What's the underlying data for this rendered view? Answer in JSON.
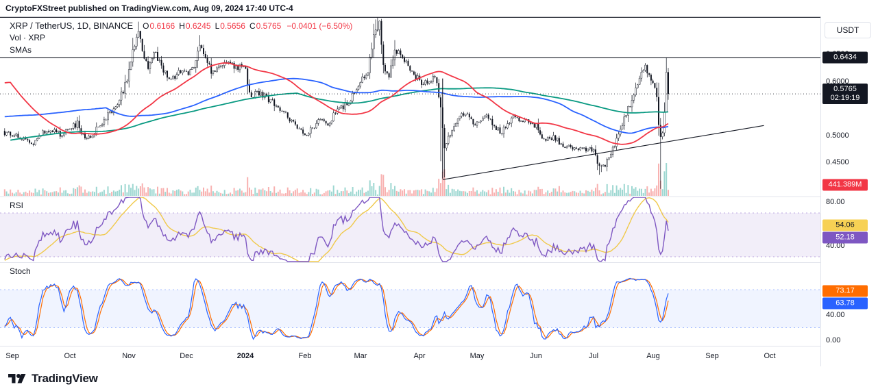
{
  "attribution": "CryptoFXStreet published on TradingView.com, Aug 09, 2024 17:40 UTC-4",
  "header": {
    "symbol_full": "XRP / TetherUS, 1D, BINANCE",
    "ohlc_items": [
      {
        "k": "O",
        "v": "0.6166"
      },
      {
        "k": "H",
        "v": "0.6245"
      },
      {
        "k": "L",
        "v": "0.5656"
      },
      {
        "k": "C",
        "v": "0.5765"
      }
    ],
    "change": "−0.0401 (−6.50%)",
    "vol_label": "Vol · XRP",
    "smas_label": "SMAs"
  },
  "panes": {
    "rsi_label": "RSI",
    "stoch_label": "Stoch"
  },
  "right_axis": {
    "currency_button": "USDT",
    "main_ticks": [
      {
        "price": 0.65,
        "label": "0.6500"
      },
      {
        "price": 0.6,
        "label": "0.6000"
      },
      {
        "price": 0.5,
        "label": "0.5000"
      },
      {
        "price": 0.45,
        "label": "0.4500"
      }
    ],
    "resistance_badge": {
      "value": "0.6434",
      "price": 0.6434,
      "bg": "#131722"
    },
    "price_badge": {
      "value": "0.5765",
      "countdown": "02:19:19",
      "price": 0.5765,
      "bg": "#131722"
    },
    "volume_badge": {
      "value": "441.389M",
      "bg": "#F23645"
    },
    "rsi_ticks": [
      {
        "value": 80,
        "label": "80.00"
      },
      {
        "value": 40,
        "label": "40.00"
      }
    ],
    "rsi_badges": [
      {
        "value": "54.06",
        "bg": "#F7D154",
        "fg": "#131722"
      },
      {
        "value": "52.18",
        "bg": "#7E57C2",
        "fg": "#ffffff"
      }
    ],
    "stoch_ticks": [
      {
        "value": 40,
        "label": "40.00"
      },
      {
        "value": 0,
        "label": "0.00"
      }
    ],
    "stoch_badges": [
      {
        "value": "73.17",
        "bg": "#FF6D00",
        "fg": "#ffffff"
      },
      {
        "value": "63.78",
        "bg": "#2962FF",
        "fg": "#ffffff"
      }
    ]
  },
  "time_axis": [
    {
      "label": "Sep",
      "day": 0
    },
    {
      "label": "Oct",
      "day": 30
    },
    {
      "label": "Nov",
      "day": 61
    },
    {
      "label": "Dec",
      "day": 91
    },
    {
      "label": "2024",
      "day": 122,
      "bold": true
    },
    {
      "label": "Feb",
      "day": 153
    },
    {
      "label": "Mar",
      "day": 182
    },
    {
      "label": "Apr",
      "day": 213
    },
    {
      "label": "May",
      "day": 243
    },
    {
      "label": "Jun",
      "day": 274
    },
    {
      "label": "Jul",
      "day": 304
    },
    {
      "label": "Aug",
      "day": 335
    },
    {
      "label": "Sep",
      "day": 366
    },
    {
      "label": "Oct",
      "day": 396
    }
  ],
  "footer": {
    "logo_text": "TradingView"
  },
  "chart_data": {
    "type": "candlestick",
    "title": "XRP / TetherUS, 1D, BINANCE",
    "quote_currency": "USDT",
    "last_candle": {
      "open": 0.6166,
      "high": 0.6245,
      "low": 0.5656,
      "close": 0.5765
    },
    "prev_candle": {
      "close": 0.6166,
      "high": 0.6434,
      "low": 0.551
    },
    "change": -0.0401,
    "change_pct": -6.5,
    "volume": {
      "last_value_m": 441.389,
      "label": "441.389M"
    },
    "key_levels": {
      "resistance": 0.6434,
      "upper_resistance": 0.718,
      "current_price": 0.5765
    },
    "y_axis_ticks": [
      0.65,
      0.6,
      0.5,
      0.45
    ],
    "rsi_axis_ticks": [
      80,
      40
    ],
    "stoch_axis_ticks": [
      40,
      0
    ],
    "price_anchors": [
      [
        -200,
        0.38
      ],
      [
        -186,
        0.396
      ],
      [
        -172,
        0.442
      ],
      [
        -158,
        0.512
      ],
      [
        -150,
        0.472
      ],
      [
        -140,
        0.455
      ],
      [
        -128,
        0.432
      ],
      [
        -115,
        0.462
      ],
      [
        -100,
        0.476
      ],
      [
        -86,
        0.47
      ],
      [
        -72,
        0.468
      ],
      [
        -56,
        0.474
      ],
      [
        -51,
        0.498
      ],
      [
        -50,
        0.74
      ],
      [
        -45,
        0.7
      ],
      [
        -38,
        0.656
      ],
      [
        -30,
        0.63
      ],
      [
        -22,
        0.592
      ],
      [
        -16,
        0.502
      ],
      [
        -10,
        0.512
      ],
      [
        -5,
        0.506
      ],
      [
        0,
        0.5
      ],
      [
        5,
        0.495
      ],
      [
        10,
        0.482
      ],
      [
        14,
        0.5
      ],
      [
        18,
        0.506
      ],
      [
        22,
        0.512
      ],
      [
        26,
        0.495
      ],
      [
        30,
        0.515
      ],
      [
        34,
        0.521
      ],
      [
        38,
        0.492
      ],
      [
        43,
        0.506
      ],
      [
        48,
        0.53
      ],
      [
        53,
        0.548
      ],
      [
        57,
        0.576
      ],
      [
        60,
        0.6
      ],
      [
        63,
        0.652
      ],
      [
        66,
        0.688
      ],
      [
        68,
        0.66
      ],
      [
        71,
        0.626
      ],
      [
        75,
        0.654
      ],
      [
        79,
        0.616
      ],
      [
        83,
        0.604
      ],
      [
        87,
        0.618
      ],
      [
        91,
        0.612
      ],
      [
        95,
        0.628
      ],
      [
        98,
        0.67
      ],
      [
        100,
        0.654
      ],
      [
        104,
        0.618
      ],
      [
        108,
        0.626
      ],
      [
        112,
        0.638
      ],
      [
        116,
        0.624
      ],
      [
        120,
        0.632
      ],
      [
        122,
        0.622
      ],
      [
        124,
        0.574
      ],
      [
        128,
        0.577
      ],
      [
        132,
        0.571
      ],
      [
        136,
        0.561
      ],
      [
        140,
        0.546
      ],
      [
        144,
        0.533
      ],
      [
        148,
        0.521
      ],
      [
        153,
        0.501
      ],
      [
        157,
        0.513
      ],
      [
        161,
        0.528
      ],
      [
        165,
        0.521
      ],
      [
        170,
        0.547
      ],
      [
        175,
        0.557
      ],
      [
        180,
        0.583
      ],
      [
        182,
        0.601
      ],
      [
        186,
        0.619
      ],
      [
        189,
        0.682
      ],
      [
        192,
        0.704
      ],
      [
        194,
        0.629
      ],
      [
        197,
        0.613
      ],
      [
        200,
        0.659
      ],
      [
        204,
        0.643
      ],
      [
        208,
        0.626
      ],
      [
        211,
        0.607
      ],
      [
        213,
        0.601
      ],
      [
        217,
        0.593
      ],
      [
        221,
        0.613
      ],
      [
        224,
        0.556
      ],
      [
        226,
        0.479
      ],
      [
        229,
        0.501
      ],
      [
        233,
        0.527
      ],
      [
        237,
        0.543
      ],
      [
        241,
        0.518
      ],
      [
        244,
        0.527
      ],
      [
        248,
        0.537
      ],
      [
        252,
        0.513
      ],
      [
        256,
        0.507
      ],
      [
        261,
        0.532
      ],
      [
        266,
        0.527
      ],
      [
        271,
        0.522
      ],
      [
        274,
        0.517
      ],
      [
        278,
        0.493
      ],
      [
        283,
        0.497
      ],
      [
        288,
        0.483
      ],
      [
        293,
        0.477
      ],
      [
        298,
        0.472
      ],
      [
        302,
        0.477
      ],
      [
        304,
        0.472
      ],
      [
        307,
        0.439
      ],
      [
        310,
        0.443
      ],
      [
        313,
        0.467
      ],
      [
        316,
        0.493
      ],
      [
        319,
        0.523
      ],
      [
        322,
        0.548
      ],
      [
        325,
        0.573
      ],
      [
        328,
        0.603
      ],
      [
        331,
        0.627
      ],
      [
        333,
        0.613
      ],
      [
        335,
        0.598
      ],
      [
        337,
        0.566
      ],
      [
        338,
        0.514
      ],
      [
        339,
        0.492
      ],
      [
        340,
        0.507
      ],
      [
        341,
        0.547
      ],
      [
        342,
        0.6166
      ],
      [
        343,
        0.5765
      ]
    ],
    "wick_overrides": [
      [
        63,
        "high",
        0.68
      ],
      [
        66,
        "high",
        0.71
      ],
      [
        98,
        "high",
        0.685
      ],
      [
        189,
        "high",
        0.706
      ],
      [
        190,
        "high",
        0.714
      ],
      [
        191,
        "high",
        0.7175
      ],
      [
        192,
        "high",
        0.712
      ],
      [
        200,
        "high",
        0.676
      ],
      [
        224,
        "low",
        0.452
      ],
      [
        225,
        "low",
        0.43
      ],
      [
        226,
        "low",
        0.422
      ],
      [
        307,
        "low",
        0.427
      ],
      [
        308,
        "low",
        0.432
      ],
      [
        339,
        "low",
        0.401
      ]
    ],
    "trendline": {
      "from_day": 225,
      "from_price": 0.418,
      "to_day": 393,
      "to_price": 0.518
    },
    "vertical_segment": {
      "day": 225,
      "from_price": 0.42,
      "to_price": 0.605
    },
    "indicators": {
      "rsi": {
        "length": 14,
        "last": 52.18,
        "ma_last": 54.06,
        "band": [
          30,
          70
        ]
      },
      "stoch": {
        "k_last": 63.78,
        "d_last": 73.17,
        "band": [
          20,
          80
        ]
      },
      "smas": {
        "periods": [
          50,
          100,
          200
        ]
      }
    },
    "colors": {
      "up": "#FFFFFF",
      "down": "#131722",
      "sma50": "#F23645",
      "sma100": "#2962FF",
      "sma200": "#089981",
      "rsi": "#7E57C2",
      "rsi_ma": "#F0C94A",
      "stoch_k": "#2962FF",
      "stoch_d": "#FF6D00",
      "vol_up": "rgba(38,166,154,0.45)",
      "vol_down": "rgba(239,83,80,0.45)",
      "legend_down": "#F23645",
      "drawing": "#131722"
    }
  }
}
